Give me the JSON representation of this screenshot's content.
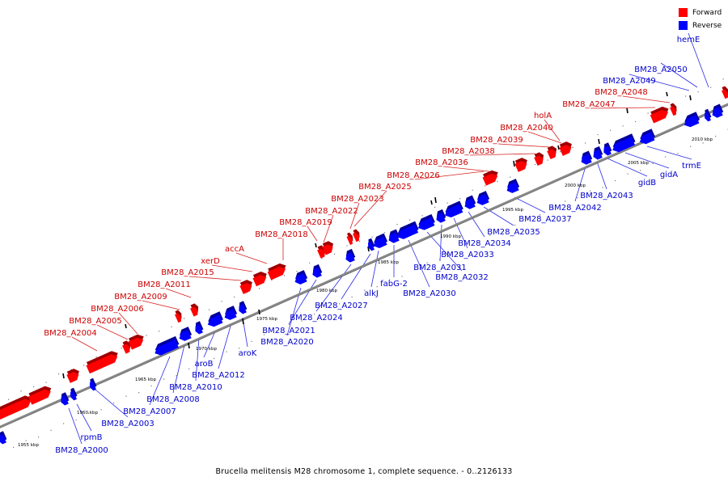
{
  "caption": "Brucella melitensis M28 chromosome 1, complete sequence. - 0..2126133",
  "legend": {
    "forward_label": "Forward",
    "reverse_label": "Reverse",
    "forward_color": "#ff0000",
    "reverse_color": "#0000ff"
  },
  "colors": {
    "axis": "#888888",
    "leader_forward": "#d62020",
    "leader_reverse": "#2a2ae8"
  },
  "ticks": [
    "1955 kbp",
    "1960 kbp",
    "1965 kbp",
    "1970 kbp",
    "1975 kbp",
    "1980 kbp",
    "1985 kbp",
    "1990 kbp",
    "1995 kbp",
    "2000 kbp",
    "2005 kbp",
    "2010 kbp"
  ],
  "forward_genes": [
    "BM28_A2004",
    "BM28_A2005",
    "BM28_A2006",
    "BM28_A2009",
    "BM28_A2011",
    "BM28_A2015",
    "xerD",
    "accA",
    "BM28_A2018",
    "BM28_A2019",
    "BM28_A2022",
    "BM28_A2023",
    "BM28_A2025",
    "BM28_A2026",
    "BM28_A2036",
    "BM28_A2038",
    "BM28_A2039",
    "BM28_A2040",
    "holA",
    "BM28_A2047",
    "BM28_A2048"
  ],
  "reverse_genes": [
    "BM28_A2000",
    "rpmB",
    "BM28_A2003",
    "BM28_A2007",
    "BM28_A2008",
    "BM28_A2010",
    "aroB",
    "BM28_A2012",
    "aroK",
    "BM28_A2020",
    "BM28_A2021",
    "BM28_A2024",
    "BM28_A2027",
    "alkJ",
    "fabG-2",
    "BM28_A2030",
    "BM28_A2032",
    "BM28_A2031",
    "BM28_A2033",
    "BM28_A2034",
    "BM28_A2035",
    "BM28_A2037",
    "BM28_A2042",
    "BM28_A2043",
    "gidB",
    "gidA",
    "trmE",
    "BM28_A2049",
    "BM28_A2050",
    "hemE"
  ]
}
